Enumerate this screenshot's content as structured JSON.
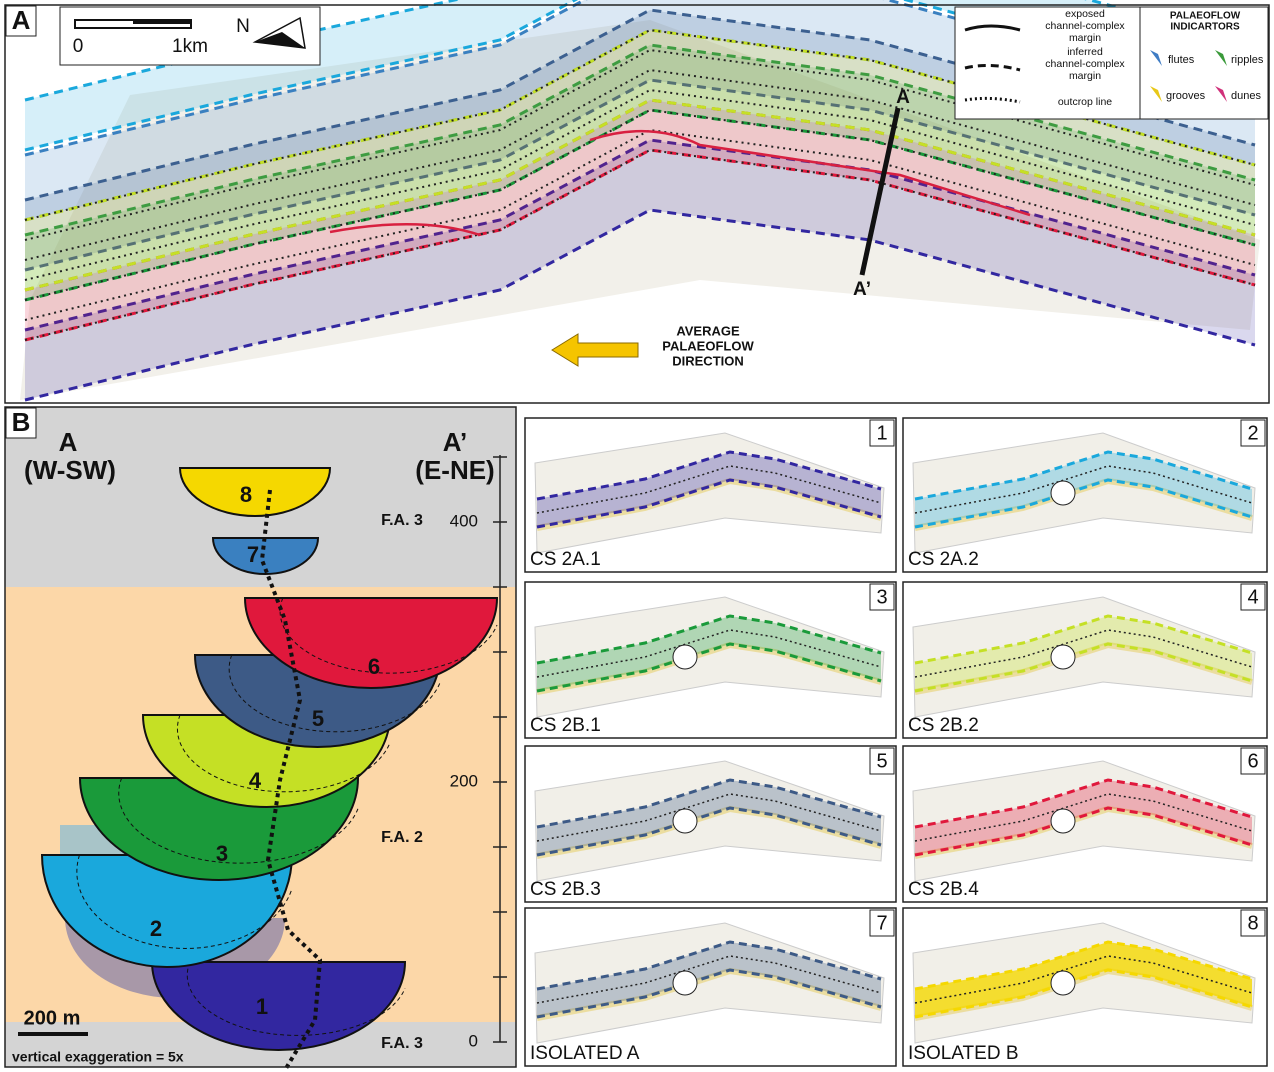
{
  "panel_a": {
    "label": "A",
    "scale": {
      "start": "0",
      "end": "1km"
    },
    "north": "N",
    "legend": [
      [
        "exposed",
        "channel-complex",
        "margin"
      ],
      [
        "inferred",
        "channel-complex",
        "margin"
      ],
      [
        "outcrop line"
      ]
    ],
    "palaeoflow": {
      "title": [
        "PALAEOFLOW",
        "INDICARTORS"
      ],
      "items": [
        "flutes",
        "ripples",
        "grooves",
        "dunes"
      ]
    },
    "section_start": "A",
    "section_end": "A’",
    "flow_direction": [
      "AVERAGE",
      "PALAEOFLOW",
      "DIRECTION"
    ]
  },
  "panel_b": {
    "label": "B",
    "left": {
      "name": "A",
      "direction": "(W-SW)"
    },
    "right": {
      "name": "A’",
      "direction": "(E-NE)"
    },
    "units": [
      "1",
      "2",
      "3",
      "4",
      "5",
      "6",
      "7",
      "8"
    ],
    "facies": [
      "F.A. 3",
      "F.A. 2",
      "F.A. 3"
    ],
    "depth_ticks": [
      "400",
      "200",
      "0"
    ],
    "scale_bar": "200 m",
    "exaggeration": "vertical exaggeration = 5x"
  },
  "panels": [
    {
      "number": "1",
      "label": "CS 2A.1"
    },
    {
      "number": "2",
      "label": "CS 2A.2"
    },
    {
      "number": "3",
      "label": "CS 2B.1"
    },
    {
      "number": "4",
      "label": "CS 2B.2"
    },
    {
      "number": "5",
      "label": "CS 2B.3"
    },
    {
      "number": "6",
      "label": "CS 2B.4"
    },
    {
      "number": "7",
      "label": "ISOLATED A"
    },
    {
      "number": "8",
      "label": "ISOLATED B"
    }
  ]
}
